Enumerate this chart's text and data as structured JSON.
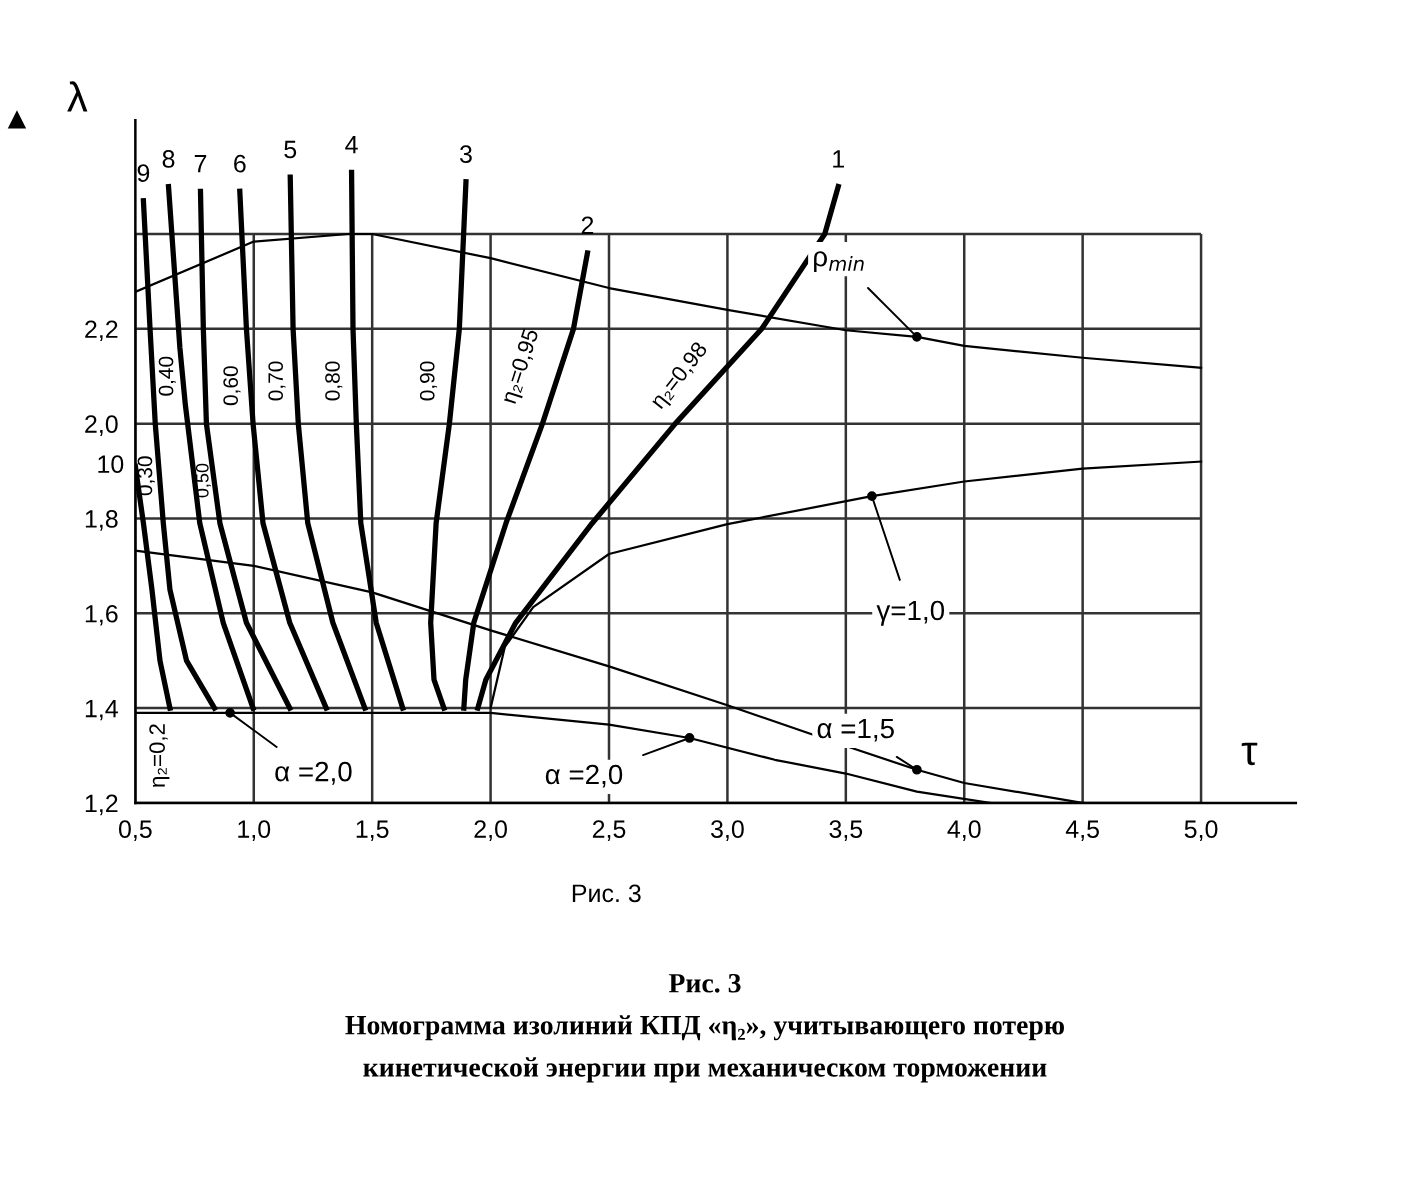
{
  "chart_data": {
    "type": "line",
    "xlabel": "τ",
    "ylabel": "λ",
    "xlim": [
      0.5,
      5.4
    ],
    "ylim": [
      1.2,
      2.64
    ],
    "xticks": [
      {
        "value": 0.5,
        "label": "0,5"
      },
      {
        "value": 1.0,
        "label": "1,0"
      },
      {
        "value": 1.5,
        "label": "1,5"
      },
      {
        "value": 2.0,
        "label": "2,0"
      },
      {
        "value": 2.5,
        "label": "2,5"
      },
      {
        "value": 3.0,
        "label": "3,0"
      },
      {
        "value": 3.5,
        "label": "3,5"
      },
      {
        "value": 4.0,
        "label": "4,0"
      },
      {
        "value": 4.5,
        "label": "4,5"
      },
      {
        "value": 5.0,
        "label": "5,0"
      }
    ],
    "yticks": [
      {
        "value": 1.2,
        "label": "1,2"
      },
      {
        "value": 1.4,
        "label": "1,4"
      },
      {
        "value": 1.6,
        "label": "1,6"
      },
      {
        "value": 1.8,
        "label": "1,8"
      },
      {
        "value": 2.0,
        "label": "2,0"
      },
      {
        "value": 2.2,
        "label": "2,2"
      },
      {
        "value": 2.4,
        "label": null
      }
    ],
    "grid": true,
    "marker": "none",
    "line_style": "solid",
    "series": [
      {
        "name": "1",
        "color": "#000000",
        "x": [
          1.946,
          1.98,
          2.106,
          2.429,
          2.78,
          3.145,
          3.411,
          3.468
        ],
        "values": [
          1.4,
          1.46,
          1.58,
          1.79,
          2.0,
          2.2,
          2.4,
          2.5
        ]
      },
      {
        "name": "2",
        "color": "#000000",
        "x": [
          1.887,
          1.895,
          1.929,
          2.065,
          2.219,
          2.35,
          2.409
        ],
        "values": [
          1.4,
          1.46,
          1.58,
          1.79,
          2.0,
          2.2,
          2.36
        ]
      },
      {
        "name": "3",
        "color": "#000000",
        "x": [
          1.803,
          1.761,
          1.747,
          1.77,
          1.826,
          1.868,
          1.896
        ],
        "values": [
          1.4,
          1.46,
          1.58,
          1.79,
          2.0,
          2.2,
          2.51
        ]
      },
      {
        "name": "4",
        "color": "#000000",
        "x": [
          1.629,
          1.517,
          1.452,
          1.433,
          1.419,
          1.413
        ],
        "values": [
          1.4,
          1.58,
          1.79,
          2.0,
          2.2,
          2.53
        ]
      },
      {
        "name": "5",
        "color": "#000000",
        "x": [
          1.469,
          1.334,
          1.228,
          1.188,
          1.166,
          1.154
        ],
        "values": [
          1.4,
          1.58,
          1.79,
          2.0,
          2.2,
          2.52
        ]
      },
      {
        "name": "6",
        "color": "#000000",
        "x": [
          1.306,
          1.152,
          1.039,
          0.997,
          0.969,
          0.941
        ],
        "values": [
          1.4,
          1.58,
          1.79,
          2.0,
          2.2,
          2.49
        ]
      },
      {
        "name": "7",
        "color": "#000000",
        "x": [
          1.152,
          0.969,
          0.857,
          0.8,
          0.787,
          0.775
        ],
        "values": [
          1.4,
          1.58,
          1.79,
          2.0,
          2.2,
          2.49
        ]
      },
      {
        "name": "8",
        "color": "#000000",
        "x": [
          0.997,
          0.871,
          0.772,
          0.711,
          0.688,
          0.64
        ],
        "values": [
          1.4,
          1.58,
          1.79,
          2.04,
          2.16,
          2.5
        ]
      },
      {
        "name": "9",
        "color": "#000000",
        "x": [
          0.834,
          0.716,
          0.646,
          0.618,
          0.584,
          0.562,
          0.534
        ],
        "values": [
          1.4,
          1.5,
          1.65,
          1.79,
          2.0,
          2.2,
          2.47
        ]
      },
      {
        "name": "10",
        "color": "#000000",
        "x": [
          0.646,
          0.604,
          0.57,
          0.534,
          0.5
        ],
        "values": [
          1.4,
          1.5,
          1.65,
          1.79,
          1.91
        ]
      },
      {
        "color": "#000000",
        "x": [
          0.5,
          1.0,
          1.4,
          1.5,
          2.0,
          2.5,
          3.0,
          3.5,
          3.8,
          4.0,
          4.5,
          5.0
        ],
        "values": [
          2.278,
          2.384,
          2.4,
          2.4,
          2.349,
          2.286,
          2.24,
          2.197,
          2.183,
          2.164,
          2.139,
          2.118
        ]
      },
      {
        "color": "#000000",
        "x": [
          2.0,
          2.06,
          2.18,
          2.5,
          3.0,
          3.61,
          4.0,
          4.5,
          5.0
        ],
        "values": [
          1.4,
          1.529,
          1.613,
          1.725,
          1.788,
          1.847,
          1.878,
          1.905,
          1.92
        ]
      },
      {
        "color": "#000000",
        "x": [
          0.5,
          1.0,
          1.5,
          2.0,
          2.5,
          3.0,
          3.5,
          3.8,
          4.0,
          4.5
        ],
        "values": [
          1.732,
          1.7,
          1.644,
          1.564,
          1.488,
          1.406,
          1.32,
          1.27,
          1.242,
          1.2
        ]
      },
      {
        "color": "#000000",
        "x": [
          0.5,
          1.0,
          1.5,
          2.0,
          2.5,
          2.84,
          3.2,
          3.5,
          3.8,
          4.11
        ],
        "values": [
          1.39,
          1.39,
          1.39,
          1.39,
          1.365,
          1.337,
          1.291,
          1.262,
          1.224,
          1.2
        ]
      }
    ],
    "annotations": [
      {
        "text": "ρ$_{min}$",
        "x": 3.8,
        "y": 2.183
      },
      {
        "text": "γ=1,0",
        "x": 3.61,
        "y": 1.847
      },
      {
        "text": "α =1,5",
        "x": 3.8,
        "y": 1.27
      },
      {
        "text": "α =2,0",
        "x": 0.9,
        "y": 1.39
      },
      {
        "text": "α =2,0",
        "x": 2.84,
        "y": 1.337
      },
      "η₂=0,2",
      "0,30",
      "0,40",
      "0,50",
      "0,60",
      "0,70",
      "0,80",
      "0,90",
      "η₂=0,95",
      "η₂=0,98",
      "Рис. 3",
      "Рис. 3",
      "Номограмма изолиний КПД «η₂», учитывающего потерю",
      "кинетической энергии при механическом торможении"
    ]
  }
}
